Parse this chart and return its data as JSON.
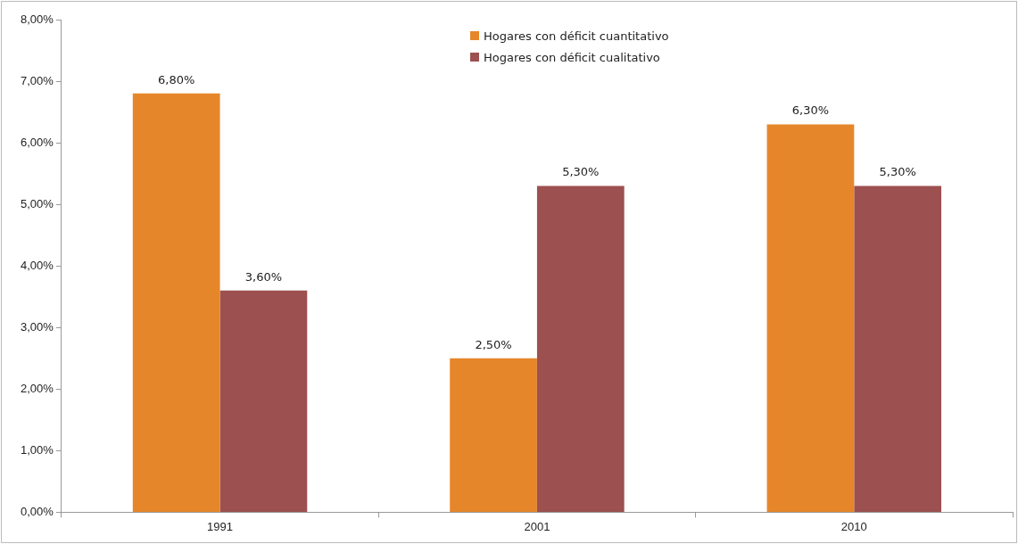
{
  "chart_data": {
    "type": "bar",
    "categories": [
      "1991",
      "2001",
      "2010"
    ],
    "series": [
      {
        "name": "Hogares con déficit cuantitativo",
        "color": "#e6862a",
        "values": [
          6.8,
          2.5,
          6.3
        ],
        "value_labels": [
          "6,80%",
          "2,50%",
          "6,30%"
        ]
      },
      {
        "name": "Hogares con déficit cualitativo",
        "color": "#9c5050",
        "values": [
          3.6,
          5.3,
          5.3
        ],
        "value_labels": [
          "3,60%",
          "5,30%",
          "5,30%"
        ]
      }
    ],
    "ylim": [
      0,
      8
    ],
    "yticks": [
      {
        "value": 0,
        "label": "0,00%"
      },
      {
        "value": 1,
        "label": "1,00%"
      },
      {
        "value": 2,
        "label": "2,00%"
      },
      {
        "value": 3,
        "label": "3,00%"
      },
      {
        "value": 4,
        "label": "4,00%"
      },
      {
        "value": 5,
        "label": "5,00%"
      },
      {
        "value": 6,
        "label": "6,00%"
      },
      {
        "value": 7,
        "label": "7,00%"
      },
      {
        "value": 8,
        "label": "8,00%"
      }
    ],
    "grid": false,
    "legend": "top"
  }
}
